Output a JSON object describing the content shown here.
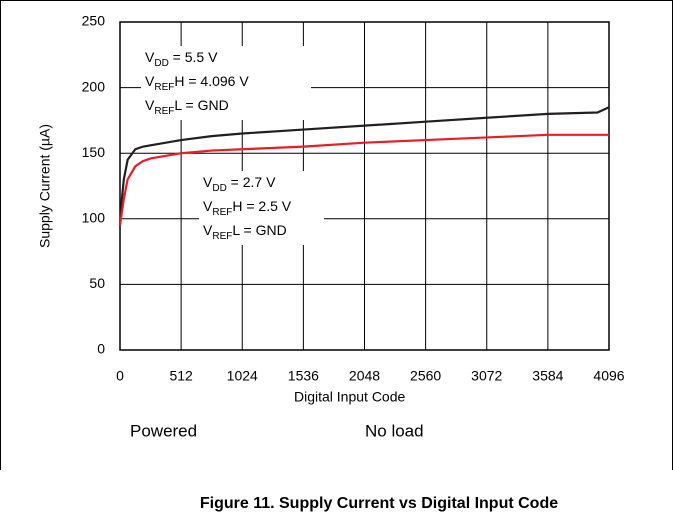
{
  "chart_data": {
    "type": "line",
    "xlabel": "Digital Input Code",
    "ylabel": "Supply Current (µA)",
    "x": [
      0,
      16,
      32,
      64,
      128,
      192,
      256,
      384,
      512,
      768,
      1024,
      1536,
      2048,
      2560,
      3072,
      3584,
      4000,
      4096
    ],
    "series": [
      {
        "color": "#231f20",
        "values": [
          95,
          115,
          130,
          145,
          153,
          155,
          156,
          158,
          160,
          163,
          165,
          168,
          171,
          174,
          177,
          180,
          181,
          185
        ]
      },
      {
        "color": "#ed1c24",
        "values": [
          95,
          105,
          115,
          130,
          140,
          144,
          146,
          148,
          150,
          152,
          153,
          155,
          158,
          160,
          162,
          164,
          164,
          164
        ]
      }
    ],
    "xlim": [
      0,
      4096
    ],
    "xticks": [
      0,
      512,
      1024,
      1536,
      2048,
      2560,
      3072,
      3584,
      4096
    ],
    "ylim": [
      0,
      250
    ],
    "yticks": [
      0,
      50,
      100,
      150,
      200,
      250
    ],
    "grid": true,
    "annotations": [
      {
        "lines": [
          [
            {
              "text": "V"
            },
            {
              "text": "DD",
              "sub": true
            },
            {
              "text": " = 5.5 V"
            }
          ],
          [
            {
              "text": "V"
            },
            {
              "text": "REF",
              "sub": true
            },
            {
              "text": "H = 4.096 V"
            }
          ],
          [
            {
              "text": "V"
            },
            {
              "text": "REF",
              "sub": true
            },
            {
              "text": "L = GND"
            }
          ]
        ]
      },
      {
        "lines": [
          [
            {
              "text": "V"
            },
            {
              "text": "DD",
              "sub": true
            },
            {
              "text": " = 2.7 V"
            }
          ],
          [
            {
              "text": "V"
            },
            {
              "text": "REF",
              "sub": true
            },
            {
              "text": "H = 2.5 V"
            }
          ],
          [
            {
              "text": "V"
            },
            {
              "text": "REF",
              "sub": true
            },
            {
              "text": "L = GND"
            }
          ]
        ]
      }
    ],
    "notes": [
      "Powered",
      "No load"
    ],
    "caption": "Figure 11. Supply Current vs Digital Input Code"
  }
}
